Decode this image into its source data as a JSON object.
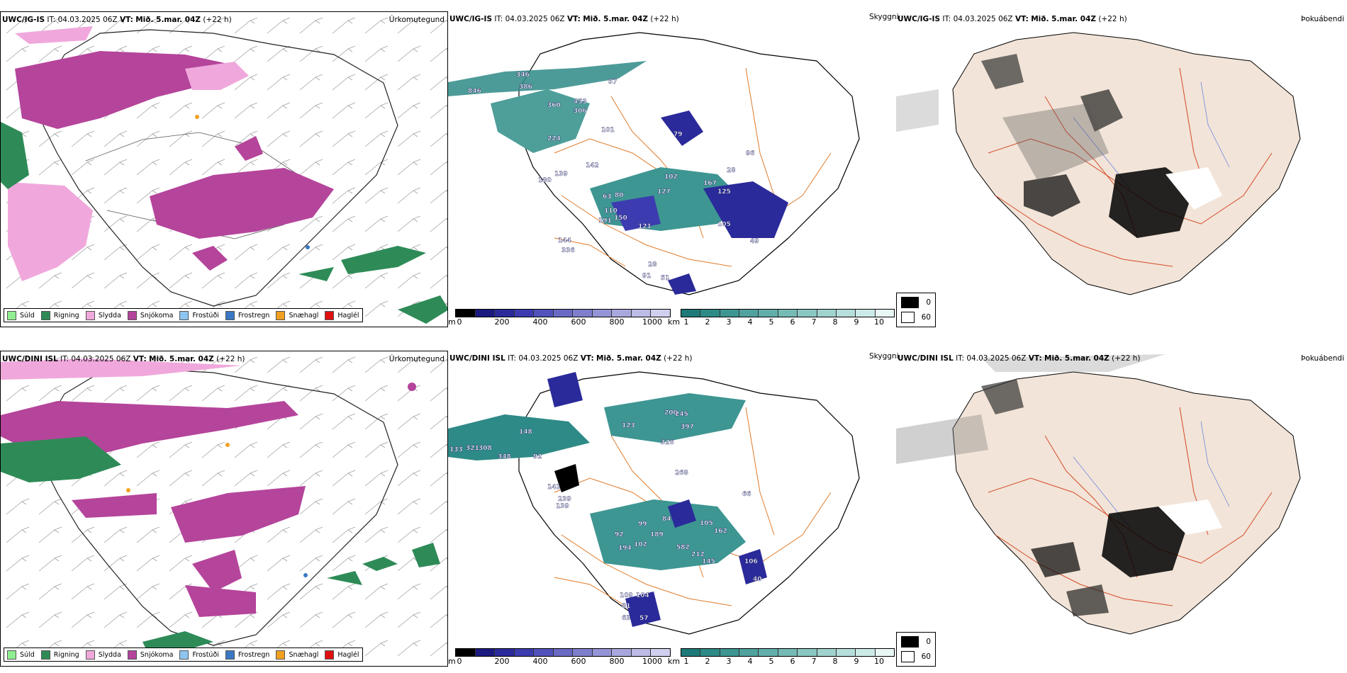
{
  "common": {
    "it_label": "IT:",
    "it_value": "04.03.2025 06Z",
    "vt_label": "VT:",
    "vt_value": "Mið. 5.mar. 04Z",
    "lead": "(+22 h)"
  },
  "rows": [
    {
      "model": "UWC/IG-IS",
      "ptype_label": "Úrkomutegund",
      "vis_label": "Skyggni",
      "fog_label": "Þokuábendi",
      "vis_numbers": [
        "846",
        "346",
        "386",
        "57",
        "360",
        "453",
        "306",
        "224",
        "101",
        "79",
        "142",
        "139",
        "180",
        "102",
        "167",
        "127",
        "28",
        "125",
        "63",
        "80",
        "105",
        "110",
        "191",
        "150",
        "121",
        "49",
        "144",
        "336",
        "28",
        "91",
        "51",
        "96"
      ]
    },
    {
      "model": "UWC/DINI ISL",
      "ptype_label": "Úrkomutegund",
      "vis_label": "Skyggni",
      "fog_label": "Þokuábendi",
      "vis_numbers": [
        "133",
        "321",
        "308",
        "348",
        "92",
        "148",
        "123",
        "200",
        "245",
        "397",
        "326",
        "268",
        "141",
        "239",
        "139",
        "84",
        "105",
        "99",
        "162",
        "189",
        "92",
        "194",
        "102",
        "582",
        "212",
        "145",
        "106",
        "40",
        "109",
        "104",
        "81",
        "63",
        "57",
        "66"
      ]
    }
  ],
  "ptype_legend": [
    {
      "label": "Súld",
      "color": "#90ee90"
    },
    {
      "label": "Rigning",
      "color": "#2e8b57"
    },
    {
      "label": "Slydda",
      "color": "#f0a8dc"
    },
    {
      "label": "Snjókoma",
      "color": "#b5449b"
    },
    {
      "label": "Frostúði",
      "color": "#8ec5f0"
    },
    {
      "label": "Frostregn",
      "color": "#3a78c4"
    },
    {
      "label": "Snæhagl",
      "color": "#f0a020"
    },
    {
      "label": "Haglél",
      "color": "#e01010"
    }
  ],
  "vis_cbar_m": {
    "unit": "m",
    "ticks": [
      "0",
      "200",
      "400",
      "600",
      "800",
      "1000"
    ],
    "colors": [
      "#000000",
      "#1a1a80",
      "#2a2a9a",
      "#3c3cb0",
      "#5252bc",
      "#6a6ac4",
      "#7e7ecc",
      "#9494d6",
      "#a8a8de",
      "#bcbce6",
      "#d0d0ee"
    ]
  },
  "vis_cbar_km": {
    "unit": "km",
    "ticks": [
      "1",
      "2",
      "3",
      "4",
      "5",
      "6",
      "7",
      "8",
      "9",
      "10"
    ],
    "colors": [
      "#1e7a78",
      "#2e8a86",
      "#3e9692",
      "#50a29e",
      "#62aeaa",
      "#76bab6",
      "#8ac6c2",
      "#a0d2ce",
      "#b6dedb",
      "#ccebe8",
      "#e8f6f4"
    ]
  },
  "fog_legend": [
    {
      "value": "0",
      "color": "#000000"
    },
    {
      "value": "60",
      "color": "#ffffff"
    }
  ],
  "colors": {
    "iceland_fill": "#f2e4d8",
    "roads": "#e07b2a",
    "rivers": "#6f86e0",
    "coast": "#000000"
  }
}
